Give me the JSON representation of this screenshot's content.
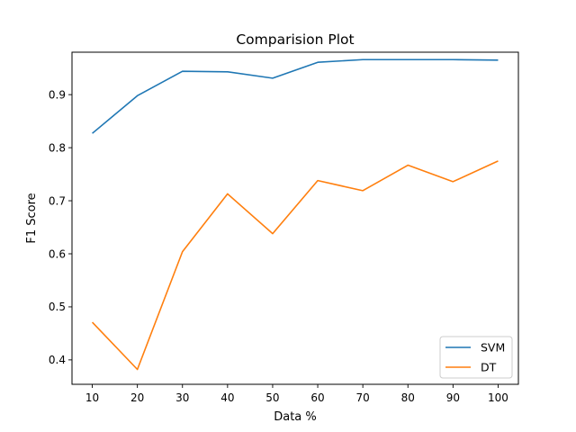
{
  "chart_data": {
    "type": "line",
    "title": "Comparision Plot",
    "xlabel": "Data %",
    "ylabel": "F1 Score",
    "x": [
      10,
      20,
      30,
      40,
      50,
      60,
      70,
      80,
      90,
      100
    ],
    "xticks": [
      10,
      20,
      30,
      40,
      50,
      60,
      70,
      80,
      90,
      100
    ],
    "yticks": [
      0.4,
      0.5,
      0.6,
      0.7,
      0.8,
      0.9
    ],
    "xlim": [
      5.5,
      104.5
    ],
    "ylim": [
      0.354,
      0.98
    ],
    "grid": false,
    "legend_position": "lower-right",
    "series": [
      {
        "name": "SVM",
        "color": "#1f77b4",
        "values": [
          0.827,
          0.898,
          0.944,
          0.943,
          0.931,
          0.961,
          0.966,
          0.966,
          0.966,
          0.965
        ]
      },
      {
        "name": "DT",
        "color": "#ff7f0e",
        "values": [
          0.471,
          0.382,
          0.604,
          0.713,
          0.638,
          0.738,
          0.719,
          0.767,
          0.736,
          0.775
        ]
      }
    ]
  }
}
